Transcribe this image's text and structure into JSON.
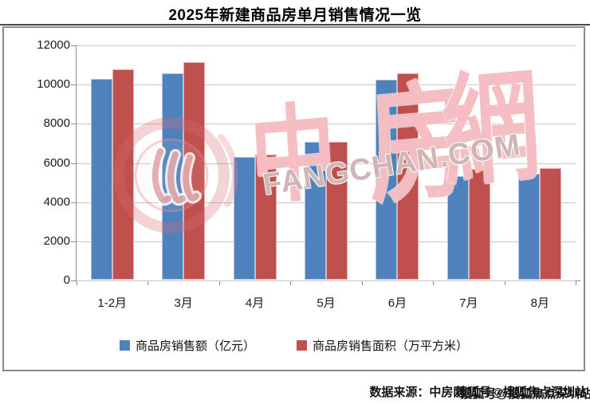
{
  "title": "2025年新建商品房单月销售情况一览",
  "source": {
    "label": "数据来源：中房网",
    "overlay_watermark": "搜狐号@搜狐焦点深圳站"
  },
  "watermark": {
    "chars": [
      "中",
      "房",
      "網"
    ],
    "domain": "FANGCHAN.COM"
  },
  "colors": {
    "series_blue": "#4F81BD",
    "series_red": "#C0504D",
    "gridline": "#C6C6C6",
    "axis": "#8E8E8E",
    "frame_border": "#8A8A8A",
    "title_rule": "#4A4A4A",
    "watermark_pink": "#F0A8AD",
    "watermark_gray": "#BC9897"
  },
  "chart_data": {
    "type": "bar",
    "title": "2025年新建商品房单月销售情况一览",
    "categories": [
      "1-2月",
      "3月",
      "4月",
      "5月",
      "6月",
      "7月",
      "8月"
    ],
    "series": [
      {
        "name": "商品房销售额（亿元）",
        "color": "#4F81BD",
        "values": [
          10250,
          10550,
          6250,
          7050,
          10200,
          5300,
          5400
        ]
      },
      {
        "name": "商品房销售面积（万平方米）",
        "color": "#C0504D",
        "values": [
          10750,
          11100,
          6400,
          7050,
          10550,
          5650,
          5700
        ]
      }
    ],
    "xlabel": "",
    "ylabel": "",
    "ylim": [
      0,
      12000
    ],
    "ytick_step": 2000,
    "grid": true,
    "legend_position": "bottom"
  }
}
